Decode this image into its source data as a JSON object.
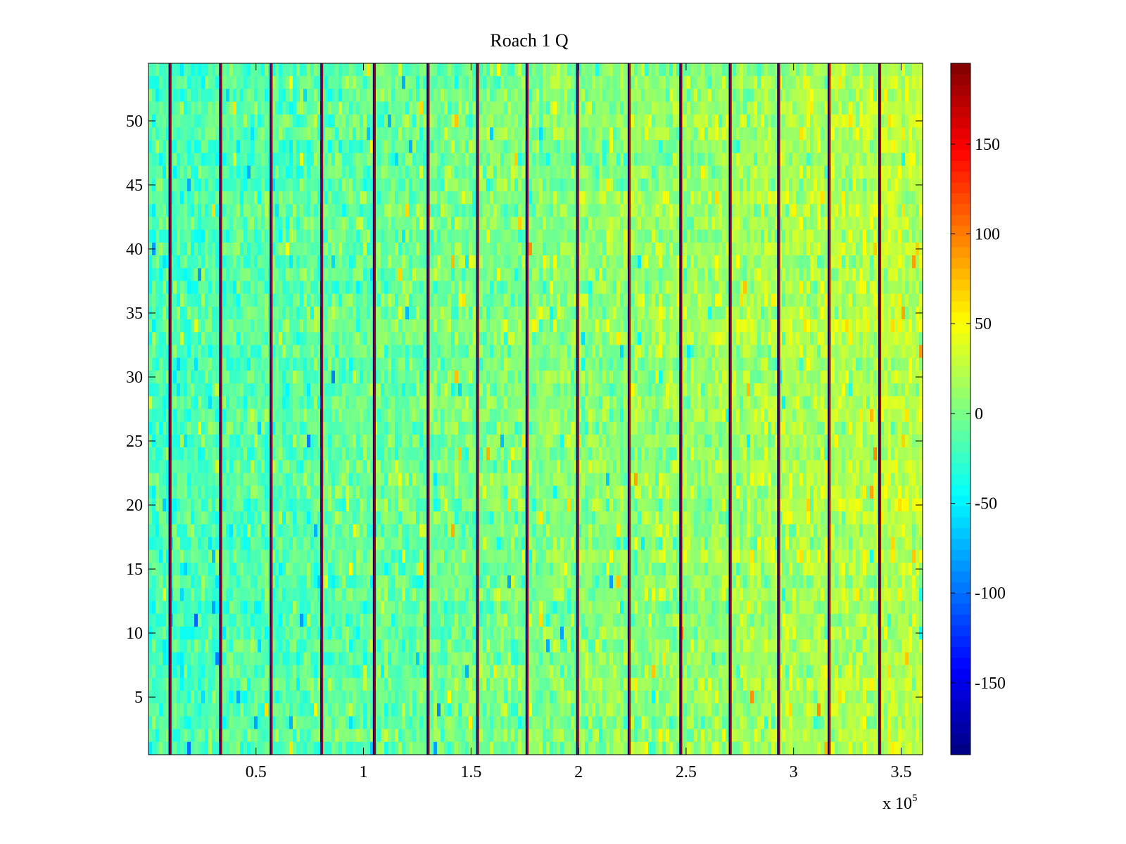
{
  "chart_data": {
    "type": "heatmap",
    "title": "Roach 1 Q",
    "xlabel": "",
    "ylabel": "",
    "x_range": [
      0,
      360000
    ],
    "y_range": [
      0.5,
      54.5
    ],
    "rows": 54,
    "x_ticks": [
      {
        "value": 50000,
        "label": "0.5"
      },
      {
        "value": 100000,
        "label": "1"
      },
      {
        "value": 150000,
        "label": "1.5"
      },
      {
        "value": 200000,
        "label": "2"
      },
      {
        "value": 250000,
        "label": "2.5"
      },
      {
        "value": 300000,
        "label": "3"
      },
      {
        "value": 350000,
        "label": "3.5"
      }
    ],
    "x_multiplier": {
      "base": "x 10",
      "exponent": "5"
    },
    "y_ticks": [
      {
        "value": 5,
        "label": "5"
      },
      {
        "value": 10,
        "label": "10"
      },
      {
        "value": 15,
        "label": "15"
      },
      {
        "value": 20,
        "label": "20"
      },
      {
        "value": 25,
        "label": "25"
      },
      {
        "value": 30,
        "label": "30"
      },
      {
        "value": 35,
        "label": "35"
      },
      {
        "value": 40,
        "label": "40"
      },
      {
        "value": 45,
        "label": "45"
      },
      {
        "value": 50,
        "label": "50"
      }
    ],
    "colormap": "jet",
    "color_range": [
      -190,
      195
    ],
    "colorbar_ticks": [
      {
        "value": 150,
        "label": "150"
      },
      {
        "value": 100,
        "label": "100"
      },
      {
        "value": 50,
        "label": "50"
      },
      {
        "value": 0,
        "label": "0"
      },
      {
        "value": -50,
        "label": "-50"
      },
      {
        "value": -100,
        "label": "-100"
      },
      {
        "value": -150,
        "label": "-150"
      }
    ],
    "spike_x": [
      10000,
      33500,
      57000,
      80500,
      105000,
      130000,
      153000,
      176000,
      199500,
      223500,
      247500,
      270500,
      293000,
      316500,
      340000
    ],
    "background_mean_left": -20,
    "background_mean_right": 25,
    "background_spread": 22,
    "grid": false,
    "legend": "none"
  }
}
